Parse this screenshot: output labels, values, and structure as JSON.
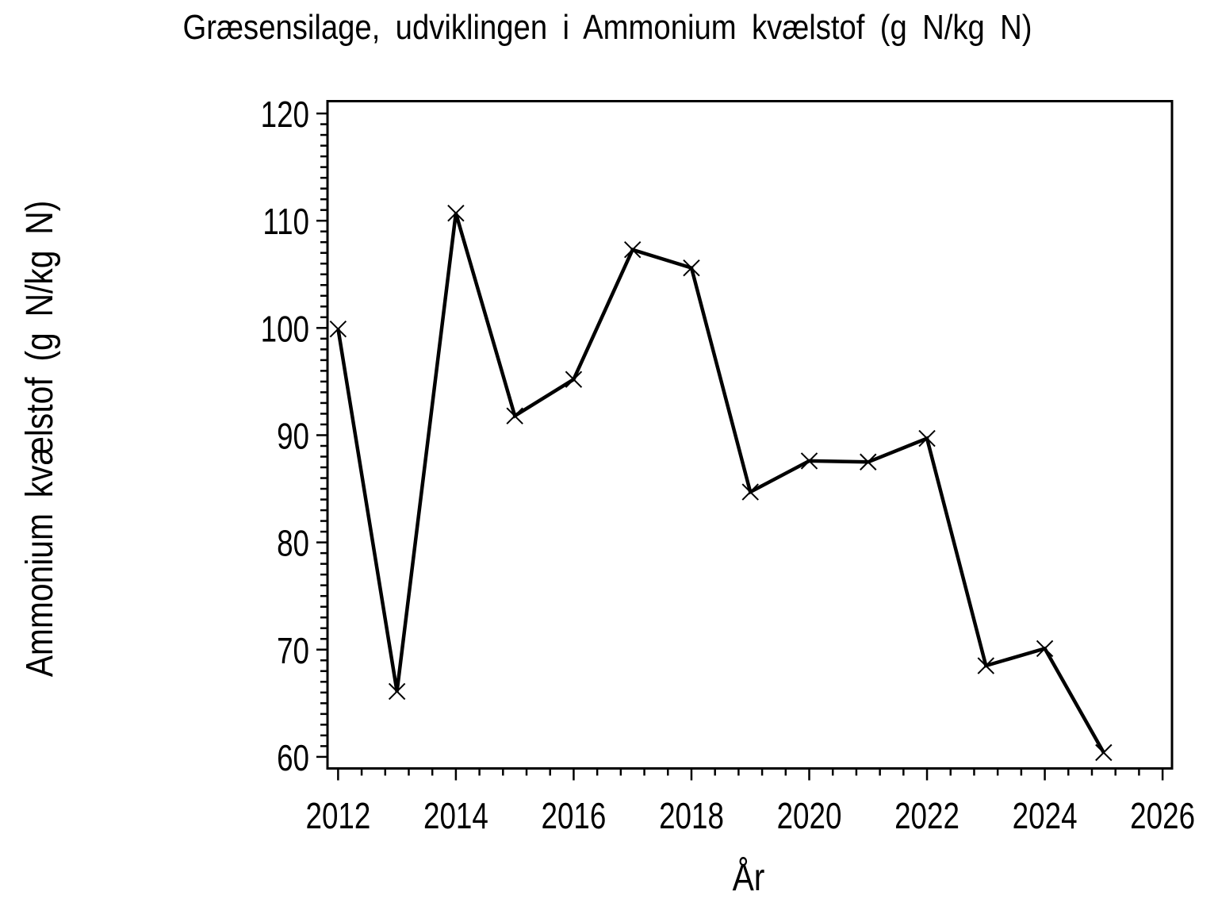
{
  "chart_data": {
    "type": "line",
    "title": "Græsensilage, udviklingen i Ammonium kvælstof (g N/kg N)",
    "xlabel": "År",
    "ylabel": "Ammonium kvælstof (g N/kg N)",
    "series": [
      {
        "name": "Ammonium kvælstof (g N/kg N)",
        "x": [
          2012,
          2013,
          2014,
          2015,
          2016,
          2017,
          2018,
          2019,
          2020,
          2021,
          2022,
          2023,
          2024,
          2025
        ],
        "values": [
          99.9,
          66.1,
          110.7,
          91.8,
          95.2,
          107.3,
          105.6,
          84.7,
          87.6,
          87.5,
          89.7,
          68.5,
          70.1,
          60.4
        ]
      }
    ],
    "marker": "x",
    "line_color": "#000000",
    "background_color": "#ffffff",
    "grid": false,
    "legend": "none",
    "xlim": [
      2011.82,
      2026.16
    ],
    "ylim": [
      58.92,
      121.15
    ],
    "x_major_ticks": [
      2012,
      2014,
      2016,
      2018,
      2020,
      2022,
      2024,
      2026
    ],
    "x_minor_step": 0.4,
    "y_major_ticks": [
      60,
      70,
      80,
      90,
      100,
      110,
      120
    ],
    "y_minor_step": 1
  }
}
